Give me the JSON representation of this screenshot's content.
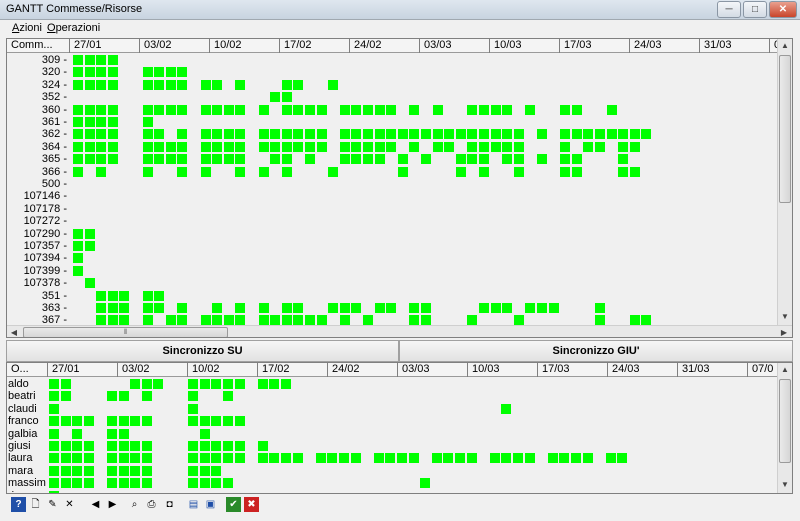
{
  "window": {
    "title": "GANTT Commesse/Risorse",
    "minimize": "─",
    "maximize": "□",
    "close": "✕"
  },
  "menu": {
    "items": [
      {
        "accel": "A",
        "rest": "zioni"
      },
      {
        "accel": "O",
        "rest": "perazioni"
      }
    ]
  },
  "colors": {
    "bar": "#00ff00"
  },
  "top": {
    "header_label": "Comm...",
    "dates": [
      "27/01",
      "03/02",
      "10/02",
      "17/02",
      "24/02",
      "03/03",
      "10/03",
      "17/03",
      "24/03",
      "31/03",
      "0"
    ],
    "rows": [
      {
        "label": "309 -",
        "cells": [
          0,
          1,
          2,
          3
        ]
      },
      {
        "label": "320 -",
        "cells": [
          0,
          1,
          2,
          3,
          6,
          7,
          8,
          9
        ]
      },
      {
        "label": "324 -",
        "cells": [
          0,
          1,
          2,
          3,
          6,
          7,
          8,
          9,
          11,
          12,
          14,
          18,
          19,
          22
        ]
      },
      {
        "label": "352 -",
        "cells": [
          17,
          18
        ]
      },
      {
        "label": "360 -",
        "cells": [
          0,
          1,
          2,
          3,
          6,
          7,
          8,
          9,
          11,
          12,
          13,
          14,
          16,
          18,
          19,
          20,
          21,
          23,
          24,
          25,
          26,
          27,
          29,
          31,
          34,
          35,
          36,
          37,
          39,
          42,
          43,
          46
        ]
      },
      {
        "label": "361 -",
        "cells": [
          0,
          1,
          2,
          3,
          6
        ]
      },
      {
        "label": "362 -",
        "cells": [
          0,
          1,
          2,
          3,
          6,
          7,
          9,
          11,
          12,
          13,
          14,
          16,
          17,
          18,
          19,
          20,
          21,
          23,
          24,
          25,
          26,
          27,
          28,
          29,
          30,
          31,
          32,
          33,
          34,
          35,
          36,
          37,
          38,
          40,
          42,
          43,
          44,
          45,
          46,
          47,
          48,
          49
        ]
      },
      {
        "label": "364 -",
        "cells": [
          0,
          1,
          2,
          3,
          6,
          7,
          8,
          9,
          11,
          12,
          13,
          14,
          16,
          17,
          18,
          19,
          20,
          21,
          23,
          24,
          25,
          26,
          27,
          29,
          31,
          32,
          34,
          35,
          36,
          37,
          38,
          42,
          44,
          45,
          47,
          48
        ]
      },
      {
        "label": "365 -",
        "cells": [
          0,
          1,
          2,
          3,
          6,
          7,
          8,
          9,
          11,
          12,
          13,
          14,
          17,
          18,
          20,
          23,
          24,
          25,
          26,
          28,
          30,
          33,
          34,
          35,
          37,
          38,
          40,
          42,
          43,
          47
        ]
      },
      {
        "label": "366 -",
        "cells": [
          0,
          2,
          6,
          9,
          11,
          14,
          16,
          18,
          22,
          28,
          33,
          35,
          38,
          42,
          43,
          47,
          48
        ]
      },
      {
        "label": "500 -",
        "cells": []
      },
      {
        "label": "107146 -",
        "cells": []
      },
      {
        "label": "107178 -",
        "cells": []
      },
      {
        "label": "107272 -",
        "cells": []
      },
      {
        "label": "107290 -",
        "cells": [
          0,
          1
        ]
      },
      {
        "label": "107357 -",
        "cells": [
          0,
          1
        ]
      },
      {
        "label": "107394 -",
        "cells": [
          0
        ]
      },
      {
        "label": "107399 -",
        "cells": [
          0
        ]
      },
      {
        "label": "107378 -",
        "cells": [
          1
        ]
      },
      {
        "label": "351 -",
        "cells": [
          2,
          3,
          4,
          6,
          7
        ]
      },
      {
        "label": "363 -",
        "cells": [
          2,
          3,
          4,
          6,
          7,
          9,
          12,
          14,
          16,
          18,
          19,
          22,
          23,
          24,
          26,
          27,
          29,
          30,
          35,
          36,
          37,
          39,
          40,
          41,
          45
        ]
      },
      {
        "label": "367 -",
        "cells": [
          2,
          3,
          4,
          6,
          8,
          9,
          11,
          12,
          13,
          14,
          16,
          17,
          18,
          19,
          20,
          21,
          23,
          25,
          29,
          30,
          34,
          38,
          45,
          48,
          49
        ]
      }
    ]
  },
  "sync": {
    "up": "Sincronizzo SU",
    "down": "Sincronizzo GIU'"
  },
  "bottom": {
    "header_label": "O...",
    "dates": [
      "27/01",
      "03/02",
      "10/02",
      "17/02",
      "24/02",
      "03/03",
      "10/03",
      "17/03",
      "24/03",
      "31/03",
      "07/0"
    ],
    "rows": [
      {
        "label": "aldo",
        "cells": [
          0,
          1,
          7,
          8,
          9,
          12,
          13,
          14,
          15,
          16,
          18,
          19,
          20
        ]
      },
      {
        "label": "beatri",
        "cells": [
          0,
          1,
          5,
          6,
          8,
          12,
          15
        ]
      },
      {
        "label": "claudi",
        "cells": [
          0,
          12,
          39
        ]
      },
      {
        "label": "franco",
        "cells": [
          0,
          1,
          2,
          3,
          5,
          6,
          7,
          8,
          12,
          13,
          14,
          15,
          16
        ]
      },
      {
        "label": "galbia",
        "cells": [
          0,
          2,
          5,
          6,
          13
        ]
      },
      {
        "label": "giusi",
        "cells": [
          0,
          1,
          2,
          3,
          5,
          6,
          7,
          8,
          12,
          13,
          14,
          15,
          16,
          18
        ]
      },
      {
        "label": "laura",
        "cells": [
          0,
          1,
          2,
          3,
          5,
          6,
          7,
          8,
          12,
          13,
          14,
          15,
          16,
          18,
          19,
          20,
          21,
          23,
          24,
          25,
          26,
          28,
          29,
          30,
          31,
          33,
          34,
          35,
          36,
          38,
          39,
          40,
          41,
          43,
          44,
          45,
          46,
          48,
          49
        ]
      },
      {
        "label": "mara",
        "cells": [
          0,
          1,
          2,
          3,
          5,
          6,
          7,
          8,
          12,
          13,
          14
        ]
      },
      {
        "label": "massim",
        "cells": [
          0,
          1,
          2,
          3,
          5,
          6,
          7,
          8,
          12,
          13,
          14,
          15,
          32
        ]
      },
      {
        "label": "ringer",
        "cells": [
          0
        ]
      }
    ]
  },
  "toolbar": {
    "buttons": [
      {
        "name": "help-icon",
        "glyph": "?"
      },
      {
        "name": "new-document-icon",
        "glyph": "🗋"
      },
      {
        "name": "edit-document-icon",
        "glyph": "✎"
      },
      {
        "name": "delete-document-icon",
        "glyph": "✕"
      },
      {
        "name": "previous-icon",
        "glyph": "◀"
      },
      {
        "name": "next-icon",
        "glyph": "▶"
      },
      {
        "name": "search-icon",
        "glyph": "⌕"
      },
      {
        "name": "print-icon",
        "glyph": "⎙"
      },
      {
        "name": "camera-icon",
        "glyph": "◘"
      },
      {
        "name": "report-icon",
        "glyph": "▤"
      },
      {
        "name": "preview-icon",
        "glyph": "▣"
      },
      {
        "name": "confirm-icon",
        "glyph": "✔"
      },
      {
        "name": "cancel-icon",
        "glyph": "✖"
      }
    ]
  }
}
